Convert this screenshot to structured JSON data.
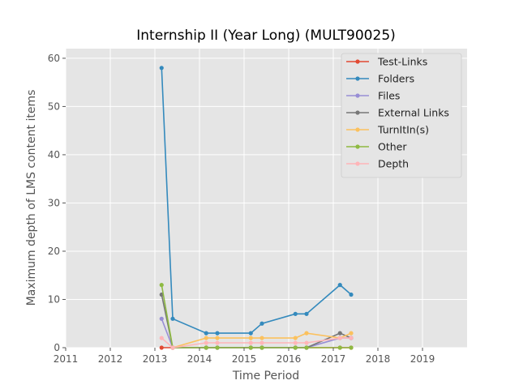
{
  "chart_data": {
    "type": "line",
    "title": "Internship II (Year Long) (MULT90025)",
    "xlabel": "Time Period",
    "ylabel": "Maximum depth of LMS content items",
    "xlim": [
      2011.0,
      2020.0
    ],
    "ylim": [
      0,
      62
    ],
    "xticks": [
      "2011",
      "2012",
      "2013",
      "2014",
      "2015",
      "2016",
      "2017",
      "2018",
      "2019"
    ],
    "yticks": [
      "0",
      "10",
      "20",
      "30",
      "40",
      "50",
      "60"
    ],
    "grid": true,
    "legend_position": "top-right",
    "series": [
      {
        "name": "Test-Links",
        "color": "#E24A33",
        "points": [
          [
            2013.15,
            0
          ],
          [
            2013.4,
            0
          ],
          [
            2014.15,
            0
          ],
          [
            2014.4,
            0
          ],
          [
            2015.15,
            0
          ],
          [
            2015.4,
            0
          ],
          [
            2016.15,
            0
          ],
          [
            2016.4,
            0
          ],
          [
            2017.15,
            0
          ],
          [
            2017.4,
            0
          ]
        ]
      },
      {
        "name": "Folders",
        "color": "#348ABD",
        "points": [
          [
            2013.15,
            58
          ],
          [
            2013.4,
            6
          ],
          [
            2014.15,
            3
          ],
          [
            2014.4,
            3
          ],
          [
            2015.15,
            3
          ],
          [
            2015.4,
            5
          ],
          [
            2016.15,
            7
          ],
          [
            2016.4,
            7
          ],
          [
            2017.15,
            13
          ],
          [
            2017.4,
            11
          ]
        ]
      },
      {
        "name": "Files",
        "color": "#988ED5",
        "points": [
          [
            2013.15,
            6
          ],
          [
            2013.4,
            0
          ],
          [
            2014.15,
            0
          ],
          [
            2014.4,
            0
          ],
          [
            2015.15,
            0
          ],
          [
            2015.4,
            0
          ],
          [
            2016.15,
            0
          ],
          [
            2016.4,
            0
          ],
          [
            2017.15,
            2
          ],
          [
            2017.4,
            2
          ]
        ]
      },
      {
        "name": "External Links",
        "color": "#777777",
        "points": [
          [
            2013.15,
            11
          ],
          [
            2013.4,
            0
          ],
          [
            2014.15,
            0
          ],
          [
            2014.4,
            0
          ],
          [
            2015.15,
            0
          ],
          [
            2015.4,
            0
          ],
          [
            2016.15,
            0
          ],
          [
            2016.4,
            0
          ],
          [
            2017.15,
            3
          ],
          [
            2017.4,
            2
          ]
        ]
      },
      {
        "name": "TurnItIn(s)",
        "color": "#FBC15E",
        "points": [
          [
            2013.4,
            0
          ],
          [
            2014.15,
            2
          ],
          [
            2014.4,
            2
          ],
          [
            2015.15,
            2
          ],
          [
            2015.4,
            2
          ],
          [
            2016.15,
            2
          ],
          [
            2016.4,
            3
          ],
          [
            2017.15,
            2
          ],
          [
            2017.4,
            3
          ]
        ]
      },
      {
        "name": "Other",
        "color": "#8EBA42",
        "points": [
          [
            2013.15,
            13
          ],
          [
            2013.4,
            0
          ],
          [
            2014.15,
            0
          ],
          [
            2014.4,
            0
          ],
          [
            2015.15,
            0
          ],
          [
            2015.4,
            0
          ],
          [
            2016.15,
            0
          ],
          [
            2016.4,
            0
          ],
          [
            2017.15,
            0
          ],
          [
            2017.4,
            0
          ]
        ]
      },
      {
        "name": "Depth",
        "color": "#FFB5B8",
        "points": [
          [
            2013.15,
            2
          ],
          [
            2013.4,
            0
          ],
          [
            2014.15,
            1
          ],
          [
            2014.4,
            1
          ],
          [
            2015.15,
            1
          ],
          [
            2015.4,
            1
          ],
          [
            2016.15,
            1
          ],
          [
            2016.4,
            1
          ],
          [
            2017.15,
            2
          ],
          [
            2017.4,
            2
          ]
        ]
      }
    ]
  }
}
